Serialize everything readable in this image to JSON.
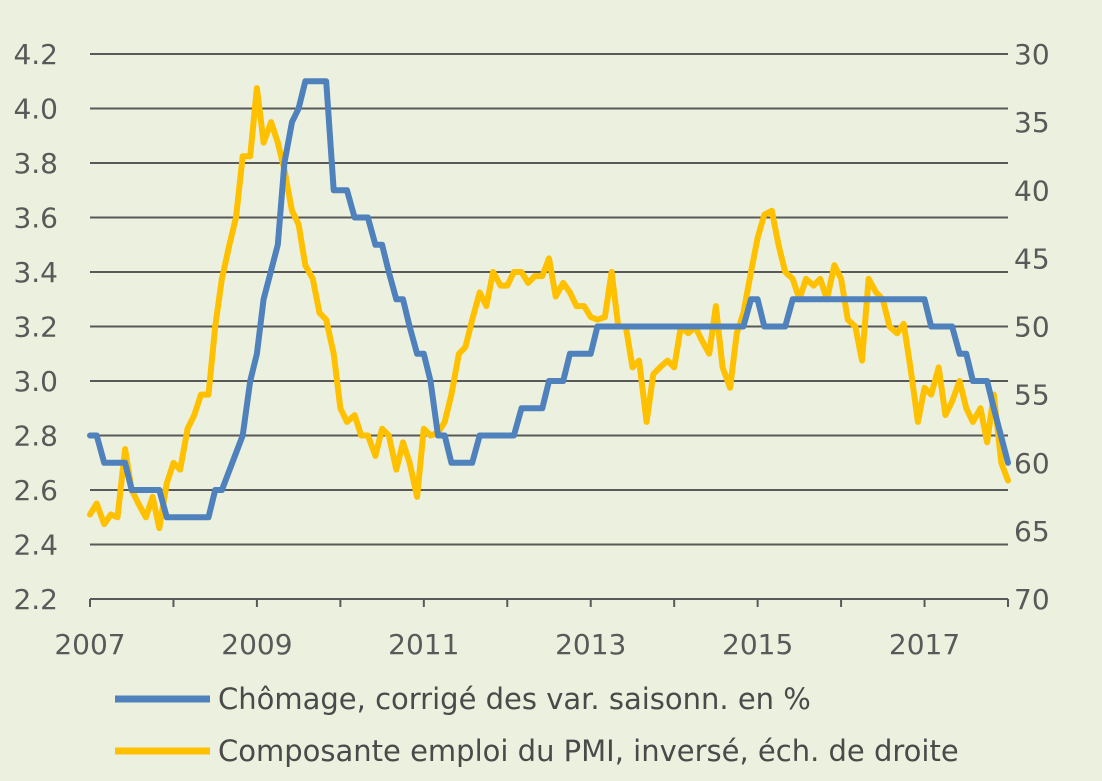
{
  "chart_data": {
    "type": "line",
    "background": "#EBF1DE",
    "grid": true,
    "legend_position": "bottom",
    "x_range": [
      2007,
      2018
    ],
    "x_ticks": [
      "2007",
      "2009",
      "2011",
      "2013",
      "2015",
      "2017"
    ],
    "y_left": {
      "range": [
        2.2,
        4.2
      ],
      "ticks": [
        "2.2",
        "2.4",
        "2.6",
        "2.8",
        "3.0",
        "3.2",
        "3.4",
        "3.6",
        "3.8",
        "4.0",
        "4.2"
      ]
    },
    "y_right": {
      "range": [
        70,
        30
      ],
      "inverted": true,
      "ticks": [
        "70",
        "65",
        "60",
        "55",
        "50",
        "45",
        "40",
        "35",
        "30"
      ]
    },
    "series": [
      {
        "name": "Chômage, corrigé des var. saisonn. en %",
        "axis": "left",
        "color": "#4F81BD",
        "points": [
          [
            2007.0,
            2.8
          ],
          [
            2007.08,
            2.8
          ],
          [
            2007.17,
            2.7
          ],
          [
            2007.42,
            2.7
          ],
          [
            2007.5,
            2.6
          ],
          [
            2007.83,
            2.6
          ],
          [
            2007.92,
            2.5
          ],
          [
            2008.42,
            2.5
          ],
          [
            2008.5,
            2.6
          ],
          [
            2008.58,
            2.6
          ],
          [
            2008.83,
            2.8
          ],
          [
            2008.92,
            3.0
          ],
          [
            2009.0,
            3.1
          ],
          [
            2009.08,
            3.3
          ],
          [
            2009.25,
            3.5
          ],
          [
            2009.33,
            3.8
          ],
          [
            2009.42,
            3.95
          ],
          [
            2009.5,
            4.0
          ],
          [
            2009.58,
            4.1
          ],
          [
            2009.83,
            4.1
          ],
          [
            2009.92,
            3.7
          ],
          [
            2010.08,
            3.7
          ],
          [
            2010.17,
            3.6
          ],
          [
            2010.33,
            3.6
          ],
          [
            2010.42,
            3.5
          ],
          [
            2010.5,
            3.5
          ],
          [
            2010.58,
            3.4
          ],
          [
            2010.67,
            3.3
          ],
          [
            2010.75,
            3.3
          ],
          [
            2010.83,
            3.2
          ],
          [
            2010.92,
            3.1
          ],
          [
            2011.0,
            3.1
          ],
          [
            2011.08,
            3.0
          ],
          [
            2011.17,
            2.8
          ],
          [
            2011.25,
            2.8
          ],
          [
            2011.33,
            2.7
          ],
          [
            2011.58,
            2.7
          ],
          [
            2011.67,
            2.8
          ],
          [
            2012.08,
            2.8
          ],
          [
            2012.17,
            2.9
          ],
          [
            2012.42,
            2.9
          ],
          [
            2012.5,
            3.0
          ],
          [
            2012.67,
            3.0
          ],
          [
            2012.75,
            3.1
          ],
          [
            2013.0,
            3.1
          ],
          [
            2013.08,
            3.2
          ],
          [
            2014.83,
            3.2
          ],
          [
            2014.92,
            3.3
          ],
          [
            2015.0,
            3.3
          ],
          [
            2015.08,
            3.2
          ],
          [
            2015.33,
            3.2
          ],
          [
            2015.42,
            3.3
          ],
          [
            2016.83,
            3.3
          ],
          [
            2017.0,
            3.3
          ],
          [
            2017.08,
            3.2
          ],
          [
            2017.33,
            3.2
          ],
          [
            2017.42,
            3.1
          ],
          [
            2017.5,
            3.1
          ],
          [
            2017.58,
            3.0
          ],
          [
            2017.75,
            3.0
          ],
          [
            2017.83,
            2.9
          ],
          [
            2018.0,
            2.7
          ]
        ]
      },
      {
        "name": "Composante emploi du PMI, inversé, éch. de droite",
        "axis": "right",
        "color": "#FFC000",
        "points": [
          [
            2007.0,
            63.8
          ],
          [
            2007.08,
            63.0
          ],
          [
            2007.17,
            64.5
          ],
          [
            2007.25,
            63.8
          ],
          [
            2007.33,
            64.0
          ],
          [
            2007.42,
            59.0
          ],
          [
            2007.5,
            62.0
          ],
          [
            2007.58,
            63.0
          ],
          [
            2007.67,
            64.0
          ],
          [
            2007.75,
            62.5
          ],
          [
            2007.83,
            64.8
          ],
          [
            2007.92,
            61.5
          ],
          [
            2008.0,
            60.0
          ],
          [
            2008.08,
            60.5
          ],
          [
            2008.17,
            57.5
          ],
          [
            2008.25,
            56.5
          ],
          [
            2008.33,
            55.0
          ],
          [
            2008.42,
            55.0
          ],
          [
            2008.5,
            50.0
          ],
          [
            2008.58,
            46.5
          ],
          [
            2008.67,
            44.0
          ],
          [
            2008.75,
            42.0
          ],
          [
            2008.83,
            37.5
          ],
          [
            2008.92,
            37.5
          ],
          [
            2009.0,
            32.5
          ],
          [
            2009.08,
            36.5
          ],
          [
            2009.17,
            35.0
          ],
          [
            2009.25,
            36.5
          ],
          [
            2009.33,
            38.5
          ],
          [
            2009.42,
            41.5
          ],
          [
            2009.5,
            42.5
          ],
          [
            2009.58,
            45.5
          ],
          [
            2009.67,
            46.5
          ],
          [
            2009.75,
            49.0
          ],
          [
            2009.83,
            49.5
          ],
          [
            2009.92,
            52.0
          ],
          [
            2010.0,
            56.0
          ],
          [
            2010.08,
            57.0
          ],
          [
            2010.17,
            56.5
          ],
          [
            2010.25,
            58.0
          ],
          [
            2010.33,
            58.0
          ],
          [
            2010.42,
            59.5
          ],
          [
            2010.5,
            57.5
          ],
          [
            2010.58,
            58.0
          ],
          [
            2010.67,
            60.5
          ],
          [
            2010.75,
            58.5
          ],
          [
            2010.83,
            60.0
          ],
          [
            2010.92,
            62.5
          ],
          [
            2011.0,
            57.5
          ],
          [
            2011.08,
            58.0
          ],
          [
            2011.17,
            57.8
          ],
          [
            2011.25,
            57.0
          ],
          [
            2011.33,
            55.0
          ],
          [
            2011.42,
            52.0
          ],
          [
            2011.5,
            51.5
          ],
          [
            2011.58,
            49.5
          ],
          [
            2011.67,
            47.5
          ],
          [
            2011.75,
            48.5
          ],
          [
            2011.83,
            46.0
          ],
          [
            2011.92,
            47.0
          ],
          [
            2012.0,
            47.0
          ],
          [
            2012.08,
            46.0
          ],
          [
            2012.17,
            46.0
          ],
          [
            2012.25,
            46.8
          ],
          [
            2012.33,
            46.3
          ],
          [
            2012.42,
            46.3
          ],
          [
            2012.5,
            45.0
          ],
          [
            2012.58,
            47.8
          ],
          [
            2012.67,
            46.8
          ],
          [
            2012.75,
            47.5
          ],
          [
            2012.83,
            48.5
          ],
          [
            2012.92,
            48.5
          ],
          [
            2013.0,
            49.3
          ],
          [
            2013.08,
            49.5
          ],
          [
            2013.17,
            49.3
          ],
          [
            2013.25,
            46.0
          ],
          [
            2013.33,
            50.0
          ],
          [
            2013.42,
            50.0
          ],
          [
            2013.5,
            53.0
          ],
          [
            2013.58,
            52.5
          ],
          [
            2013.67,
            57.0
          ],
          [
            2013.75,
            53.5
          ],
          [
            2013.83,
            53.0
          ],
          [
            2013.92,
            52.5
          ],
          [
            2014.0,
            53.0
          ],
          [
            2014.08,
            50.0
          ],
          [
            2014.17,
            50.5
          ],
          [
            2014.25,
            50.0
          ],
          [
            2014.33,
            51.0
          ],
          [
            2014.42,
            52.0
          ],
          [
            2014.5,
            48.5
          ],
          [
            2014.58,
            53.0
          ],
          [
            2014.67,
            54.5
          ],
          [
            2014.75,
            50.5
          ],
          [
            2014.83,
            49.0
          ],
          [
            2014.92,
            46.0
          ],
          [
            2015.0,
            43.5
          ],
          [
            2015.08,
            41.8
          ],
          [
            2015.17,
            41.5
          ],
          [
            2015.25,
            44.0
          ],
          [
            2015.33,
            46.0
          ],
          [
            2015.42,
            46.5
          ],
          [
            2015.5,
            48.0
          ],
          [
            2015.58,
            46.5
          ],
          [
            2015.67,
            47.0
          ],
          [
            2015.75,
            46.5
          ],
          [
            2015.83,
            48.0
          ],
          [
            2015.92,
            45.5
          ],
          [
            2016.0,
            46.5
          ],
          [
            2016.08,
            49.5
          ],
          [
            2016.17,
            50.0
          ],
          [
            2016.25,
            52.5
          ],
          [
            2016.33,
            46.5
          ],
          [
            2016.42,
            47.5
          ],
          [
            2016.5,
            48.0
          ],
          [
            2016.58,
            50.0
          ],
          [
            2016.67,
            50.5
          ],
          [
            2016.75,
            49.8
          ],
          [
            2016.83,
            53.0
          ],
          [
            2016.92,
            57.0
          ],
          [
            2017.0,
            54.5
          ],
          [
            2017.08,
            55.0
          ],
          [
            2017.17,
            53.0
          ],
          [
            2017.25,
            56.5
          ],
          [
            2017.33,
            55.5
          ],
          [
            2017.42,
            54.0
          ],
          [
            2017.5,
            56.0
          ],
          [
            2017.58,
            57.0
          ],
          [
            2017.67,
            56.0
          ],
          [
            2017.75,
            58.5
          ],
          [
            2017.83,
            55.0
          ],
          [
            2017.92,
            60.0
          ],
          [
            2018.0,
            61.3
          ]
        ]
      }
    ]
  }
}
